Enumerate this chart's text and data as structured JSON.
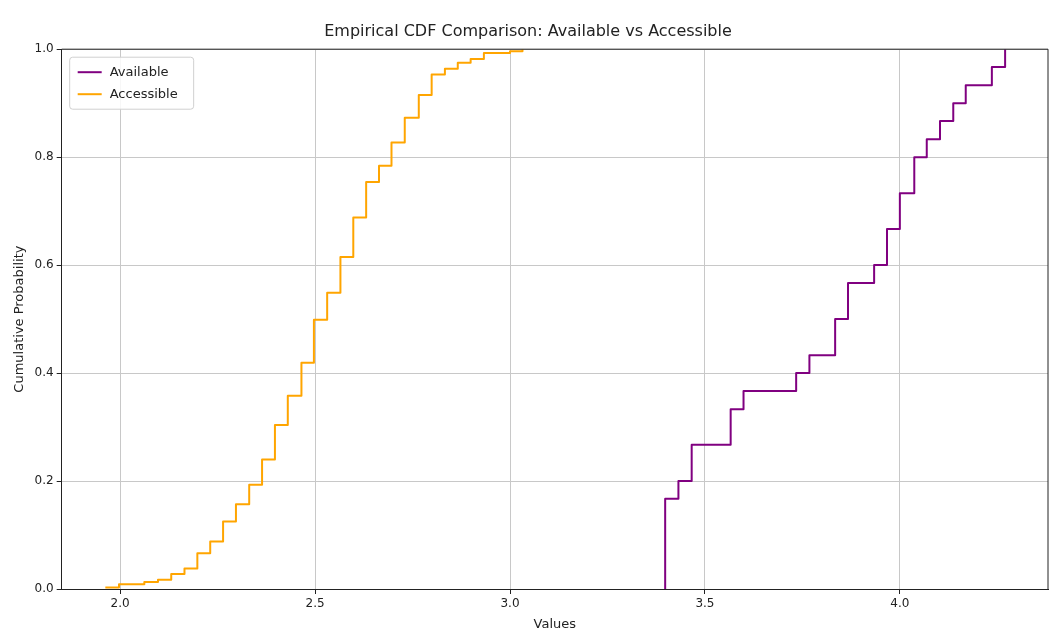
{
  "chart_data": {
    "type": "step",
    "title": "Empirical CDF Comparison: Available vs Accessible",
    "xlabel": "Values",
    "ylabel": "Cumulative Probability",
    "xlim": [
      1.85,
      4.38
    ],
    "ylim": [
      0,
      1
    ],
    "xticks": [
      {
        "value": 2,
        "label": "2.0"
      },
      {
        "value": 2.5,
        "label": "2.5"
      },
      {
        "value": 3,
        "label": "3.0"
      },
      {
        "value": 3.5,
        "label": "3.5"
      },
      {
        "value": 4,
        "label": "4.0"
      }
    ],
    "yticks": [
      {
        "value": 0,
        "label": "0.0"
      },
      {
        "value": 0.2,
        "label": "0.2"
      },
      {
        "value": 0.4,
        "label": "0.4"
      },
      {
        "value": 0.6,
        "label": "0.6"
      },
      {
        "value": 0.8,
        "label": "0.8"
      },
      {
        "value": 1,
        "label": "1.0"
      }
    ],
    "grid": true,
    "legend": "top left",
    "line_style": "solid",
    "marker": "none",
    "series": [
      {
        "name": "Available",
        "color": "#800080",
        "x": [
          3.398,
          3.398,
          3.432,
          3.466,
          3.566,
          3.599,
          3.734,
          3.768,
          3.834,
          3.867,
          3.934,
          3.967,
          4.0,
          4.037,
          4.069,
          4.103,
          4.137,
          4.169,
          4.236,
          4.27
        ],
        "values": [
          0,
          0.167,
          0.2,
          0.267,
          0.333,
          0.367,
          0.4,
          0.433,
          0.5,
          0.567,
          0.6,
          0.667,
          0.733,
          0.8,
          0.833,
          0.867,
          0.9,
          0.933,
          0.967,
          1.0
        ]
      },
      {
        "name": "Accessible",
        "color": "#ffa500",
        "x": [
          1.962,
          1.997,
          2.062,
          2.097,
          2.131,
          2.165,
          2.198,
          2.231,
          2.264,
          2.297,
          2.331,
          2.364,
          2.397,
          2.43,
          2.465,
          2.497,
          2.531,
          2.565,
          2.598,
          2.631,
          2.664,
          2.696,
          2.73,
          2.766,
          2.799,
          2.833,
          2.866,
          2.899,
          2.933,
          3.0,
          3.032
        ],
        "values": [
          0.003,
          0.009,
          0.013,
          0.017,
          0.028,
          0.038,
          0.066,
          0.088,
          0.125,
          0.157,
          0.193,
          0.24,
          0.304,
          0.358,
          0.419,
          0.499,
          0.549,
          0.615,
          0.688,
          0.754,
          0.784,
          0.827,
          0.873,
          0.915,
          0.953,
          0.964,
          0.975,
          0.982,
          0.993,
          0.996,
          1.0
        ]
      }
    ]
  }
}
